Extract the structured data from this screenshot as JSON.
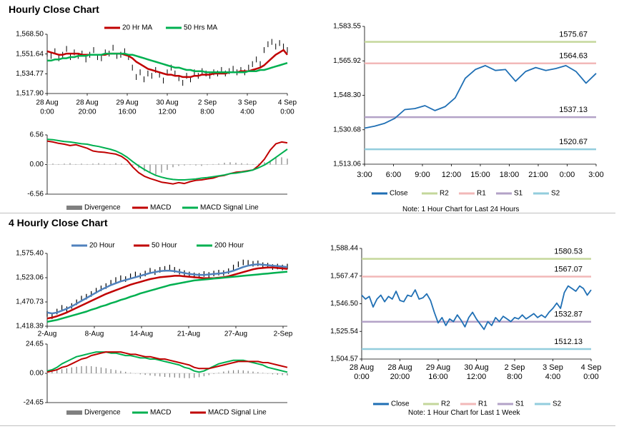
{
  "sections": {
    "hourly_title": "Hourly Close Chart",
    "four_hourly_title": "4 Hourly Close Chart"
  },
  "notes": {
    "hourly_right": "Note: 1 Hour Chart for Last 24 Hours",
    "four_hourly_right": "Note: 1 Hour Chart for Last 1 Week"
  },
  "colors": {
    "price": "#000000",
    "ma_red": "#c00000",
    "ma_green": "#00b050",
    "ma_blue": "#4f81bd",
    "close_line": "#1f6fb4",
    "r2": "#c4d79b",
    "r1": "#f2b8b8",
    "s1": "#b3a2c7",
    "s2": "#93cddd",
    "divergence": "#808080"
  },
  "chart_data": [
    {
      "id": "hourly_price",
      "type": "line",
      "title": "",
      "legend": [
        "20 Hr MA",
        "50 Hrs MA"
      ],
      "y_ticks": [
        "1,568.50",
        "1,551.64",
        "1,534.77",
        "1,517.90"
      ],
      "ylim": [
        1517.9,
        1568.5
      ],
      "x_tick_labels": [
        [
          "28 Aug",
          "0:00"
        ],
        [
          "28 Aug",
          "20:00"
        ],
        [
          "29 Aug",
          "16:00"
        ],
        [
          "30 Aug",
          "12:00"
        ],
        [
          "2 Sep",
          "8:00"
        ],
        [
          "3 Sep",
          "4:00"
        ],
        [
          "4 Sep",
          "0:00"
        ]
      ],
      "series": [
        {
          "name": "Price",
          "values": [
            1552,
            1550,
            1554,
            1548,
            1551,
            1556,
            1549,
            1553,
            1550,
            1552,
            1547,
            1551,
            1555,
            1549,
            1548,
            1553,
            1552,
            1557,
            1550,
            1551,
            1554,
            1549,
            1540,
            1532,
            1536,
            1530,
            1535,
            1533,
            1538,
            1534,
            1529,
            1536,
            1540,
            1535,
            1531,
            1527,
            1533,
            1530,
            1536,
            1533,
            1537,
            1535,
            1533,
            1536,
            1535,
            1538,
            1535,
            1537,
            1539,
            1536,
            1538,
            1536,
            1540,
            1543,
            1547,
            1543,
            1555,
            1560,
            1562,
            1558,
            1561,
            1558,
            1555
          ]
        },
        {
          "name": "20 Hr MA",
          "values": [
            1554,
            1553,
            1552,
            1551,
            1551,
            1552,
            1552,
            1552,
            1552,
            1551,
            1551,
            1551,
            1551,
            1551,
            1551,
            1551,
            1552,
            1552,
            1552,
            1552,
            1551,
            1550,
            1548,
            1545,
            1543,
            1541,
            1539,
            1538,
            1537,
            1536,
            1535,
            1534,
            1534,
            1533,
            1533,
            1532,
            1532,
            1532,
            1533,
            1533,
            1534,
            1534,
            1534,
            1535,
            1535,
            1535,
            1535,
            1536,
            1536,
            1536,
            1537,
            1537,
            1537,
            1538,
            1539,
            1540,
            1542,
            1545,
            1548,
            1551,
            1553,
            1555,
            1551
          ]
        },
        {
          "name": "50 Hrs MA",
          "values": [
            1546,
            1546,
            1547,
            1547,
            1548,
            1548,
            1549,
            1549,
            1550,
            1550,
            1550,
            1551,
            1551,
            1551,
            1551,
            1552,
            1552,
            1552,
            1552,
            1552,
            1552,
            1551,
            1551,
            1550,
            1549,
            1548,
            1547,
            1546,
            1545,
            1544,
            1543,
            1542,
            1541,
            1540,
            1540,
            1539,
            1538,
            1538,
            1537,
            1537,
            1537,
            1536,
            1536,
            1536,
            1536,
            1536,
            1536,
            1536,
            1536,
            1536,
            1536,
            1536,
            1537,
            1537,
            1537,
            1538,
            1538,
            1539,
            1540,
            1541,
            1542,
            1543,
            1544
          ]
        }
      ]
    },
    {
      "id": "hourly_macd",
      "type": "line",
      "legend": [
        "Divergence",
        "MACD",
        "MACD Signal Line"
      ],
      "y_ticks": [
        "6.56",
        "0.00",
        "-6.56"
      ],
      "ylim": [
        -6.56,
        6.56
      ],
      "series": [
        {
          "name": "Divergence",
          "values": [
            0.3,
            0.2,
            0.1,
            0.2,
            0.3,
            0.1,
            0.2,
            0.1,
            0.2,
            0.3,
            0.2,
            0.1,
            0.3,
            0.2,
            0.1,
            -0.2,
            -0.8,
            -1.5,
            -1.9,
            -2.2,
            -1.8,
            -1.2,
            -0.6,
            -0.3,
            -0.2,
            -0.1,
            -0.2,
            -0.3,
            -0.1,
            0.1,
            0.2,
            0.4,
            0.5,
            0.4,
            0.3,
            0.2,
            0.1,
            0.2,
            0.5,
            0.9,
            1.5,
            1.6,
            1.3
          ]
        },
        {
          "name": "MACD",
          "values": [
            5.2,
            5.0,
            4.7,
            4.5,
            4.2,
            4.4,
            4.0,
            3.6,
            3.0,
            2.8,
            2.7,
            2.5,
            2.3,
            1.8,
            0.9,
            -0.6,
            -1.8,
            -2.6,
            -3.1,
            -3.5,
            -3.9,
            -4.1,
            -4.3,
            -4.0,
            -4.2,
            -3.8,
            -3.5,
            -3.4,
            -3.2,
            -3.0,
            -2.6,
            -2.4,
            -2.0,
            -1.7,
            -1.6,
            -1.4,
            -1.2,
            -0.2,
            1.2,
            3.2,
            4.6,
            5.0,
            4.8
          ]
        },
        {
          "name": "MACD Signal Line",
          "values": [
            5.6,
            5.5,
            5.3,
            5.1,
            5.0,
            4.8,
            4.6,
            4.5,
            4.2,
            4.0,
            3.7,
            3.4,
            3.0,
            2.4,
            1.6,
            0.6,
            -0.3,
            -1.1,
            -1.8,
            -2.4,
            -2.8,
            -3.1,
            -3.3,
            -3.4,
            -3.4,
            -3.3,
            -3.2,
            -3.0,
            -2.9,
            -2.7,
            -2.5,
            -2.3,
            -2.0,
            -1.9,
            -1.7,
            -1.5,
            -1.2,
            -0.7,
            -0.1,
            0.7,
            1.6,
            2.5,
            3.4
          ]
        }
      ]
    },
    {
      "id": "hourly_pivot",
      "type": "line",
      "y_ticks": [
        "1,583.55",
        "1,565.92",
        "1,548.30",
        "1,530.68",
        "1,513.06"
      ],
      "ylim": [
        1513.06,
        1583.55
      ],
      "x_tick_labels": [
        "3:00",
        "6:00",
        "9:00",
        "12:00",
        "15:00",
        "18:00",
        "21:00",
        "0:00",
        "3:00"
      ],
      "levels": [
        {
          "name": "R2",
          "value": 1575.67,
          "label": "1575.67"
        },
        {
          "name": "R1",
          "value": 1564.63,
          "label": "1564.63"
        },
        {
          "name": "S1",
          "value": 1537.13,
          "label": "1537.13"
        },
        {
          "name": "S2",
          "value": 1520.67,
          "label": "1520.67"
        }
      ],
      "legend": [
        "Close",
        "R2",
        "R1",
        "S1",
        "S2"
      ],
      "series": [
        {
          "name": "Close",
          "values": [
            1531.5,
            1532.5,
            1534.0,
            1536.5,
            1541.0,
            1541.5,
            1543.0,
            1540.5,
            1542.5,
            1547.0,
            1557.0,
            1561.5,
            1563.5,
            1561.0,
            1561.5,
            1555.5,
            1560.5,
            1562.5,
            1561.0,
            1562.0,
            1563.5,
            1560.5,
            1554.5,
            1559.5
          ]
        }
      ]
    },
    {
      "id": "four_hourly_price",
      "type": "line",
      "legend": [
        "20 Hour",
        "50 Hour",
        "200 Hour"
      ],
      "y_ticks": [
        "1,575.40",
        "1,523.06",
        "1,470.73",
        "1,418.39"
      ],
      "ylim": [
        1418.39,
        1575.4
      ],
      "x_tick_labels": [
        "2-Aug",
        "8-Aug",
        "14-Aug",
        "21-Aug",
        "27-Aug",
        "2-Sep"
      ],
      "series": [
        {
          "name": "Price",
          "values": [
            1445,
            1440,
            1450,
            1458,
            1455,
            1462,
            1470,
            1478,
            1482,
            1488,
            1495,
            1500,
            1505,
            1512,
            1518,
            1522,
            1520,
            1526,
            1530,
            1527,
            1532,
            1538,
            1535,
            1540,
            1542,
            1545,
            1540,
            1536,
            1533,
            1530,
            1528,
            1527,
            1531,
            1529,
            1532,
            1534,
            1533,
            1537,
            1545,
            1552,
            1556,
            1555,
            1553,
            1554,
            1550,
            1549,
            1546,
            1547,
            1545,
            1547
          ]
        },
        {
          "name": "20 Hour",
          "values": [
            1448,
            1446,
            1448,
            1452,
            1456,
            1461,
            1467,
            1473,
            1479,
            1485,
            1491,
            1497,
            1502,
            1507,
            1511,
            1515,
            1518,
            1521,
            1524,
            1527,
            1530,
            1533,
            1535,
            1537,
            1538,
            1538,
            1537,
            1535,
            1533,
            1531,
            1530,
            1529,
            1529,
            1530,
            1531,
            1532,
            1533,
            1535,
            1538,
            1542,
            1546,
            1549,
            1551,
            1552,
            1551,
            1550,
            1549,
            1548,
            1547,
            1546
          ]
        },
        {
          "name": "50 Hour",
          "values": [
            1435,
            1437,
            1440,
            1444,
            1448,
            1453,
            1458,
            1463,
            1468,
            1473,
            1478,
            1483,
            1488,
            1492,
            1496,
            1500,
            1504,
            1508,
            1511,
            1514,
            1517,
            1520,
            1522,
            1524,
            1525,
            1526,
            1527,
            1527,
            1526,
            1525,
            1524,
            1523,
            1522,
            1522,
            1522,
            1523,
            1524,
            1526,
            1529,
            1532,
            1535,
            1538,
            1541,
            1543,
            1544,
            1545,
            1545,
            1544,
            1543,
            1542
          ]
        },
        {
          "name": "200 Hour",
          "values": [
            1428,
            1430,
            1432,
            1435,
            1438,
            1441,
            1444,
            1447,
            1450,
            1454,
            1457,
            1461,
            1464,
            1468,
            1471,
            1475,
            1478,
            1482,
            1485,
            1489,
            1492,
            1495,
            1498,
            1501,
            1504,
            1507,
            1509,
            1511,
            1513,
            1515,
            1517,
            1518,
            1519,
            1520,
            1521,
            1522,
            1523,
            1524,
            1525,
            1526,
            1527,
            1528,
            1529,
            1530,
            1531,
            1532,
            1533,
            1534,
            1535,
            1536
          ]
        }
      ]
    },
    {
      "id": "four_hourly_macd",
      "type": "line",
      "legend": [
        "Divergence",
        "MACD",
        "MACD Signal Line"
      ],
      "y_ticks": [
        "24.65",
        "0.00",
        "-24.65"
      ],
      "ylim": [
        -24.65,
        24.65
      ],
      "series": [
        {
          "name": "Divergence",
          "values": [
            1.5,
            2.0,
            2.8,
            3.5,
            4.2,
            5.0,
            5.5,
            6.0,
            6.2,
            6.0,
            5.5,
            5.0,
            4.3,
            3.5,
            2.8,
            2.0,
            1.3,
            0.5,
            -0.2,
            -0.8,
            -1.3,
            -1.8,
            -2.2,
            -2.6,
            -3.0,
            -3.3,
            -3.5,
            -3.8,
            -4.0,
            -4.1,
            -3.8,
            -3.3,
            -2.5,
            -1.5,
            -0.5,
            0.5,
            1.5,
            2.2,
            2.6,
            2.8,
            2.5,
            2.0,
            1.5,
            1.0,
            0.4,
            -0.3,
            -0.8,
            -1.2,
            -1.5,
            -1.8
          ]
        },
        {
          "name": "MACD",
          "values": [
            2,
            3,
            5,
            8,
            10,
            12,
            14,
            15,
            16,
            17,
            18,
            18,
            18,
            17,
            17,
            16,
            15,
            15,
            14,
            13,
            13,
            12,
            12,
            11,
            10,
            9,
            8,
            7,
            5,
            4,
            2,
            1,
            2,
            4,
            6,
            8,
            9,
            10,
            11,
            11,
            11,
            10,
            9,
            8,
            7,
            5,
            4,
            3,
            2,
            1
          ]
        },
        {
          "name": "MACD Signal Line",
          "values": [
            1,
            2,
            3,
            5,
            6,
            8,
            10,
            12,
            13,
            15,
            16,
            17,
            18,
            18,
            18,
            18,
            17,
            16,
            16,
            15,
            14,
            14,
            13,
            12,
            12,
            11,
            10,
            9,
            8,
            7,
            5,
            4,
            4,
            4,
            5,
            6,
            7,
            8,
            9,
            10,
            10,
            10,
            10,
            10,
            9,
            9,
            8,
            7,
            6,
            5
          ]
        }
      ]
    },
    {
      "id": "four_hourly_pivot",
      "type": "line",
      "y_ticks": [
        "1,588.44",
        "1,567.47",
        "1,546.50",
        "1,525.54",
        "1,504.57"
      ],
      "ylim": [
        1504.57,
        1588.44
      ],
      "x_tick_labels": [
        [
          "28 Aug",
          "0:00"
        ],
        [
          "28 Aug",
          "20:00"
        ],
        [
          "29 Aug",
          "16:00"
        ],
        [
          "30 Aug",
          "12:00"
        ],
        [
          "2 Sep",
          "8:00"
        ],
        [
          "3 Sep",
          "4:00"
        ],
        [
          "4 Sep",
          "0:00"
        ]
      ],
      "levels": [
        {
          "name": "R2",
          "value": 1580.53,
          "label": "1580.53"
        },
        {
          "name": "R1",
          "value": 1567.07,
          "label": "1567.07"
        },
        {
          "name": "S1",
          "value": 1532.87,
          "label": "1532.87"
        },
        {
          "name": "S2",
          "value": 1512.13,
          "label": "1512.13"
        }
      ],
      "legend": [
        "Close",
        "R2",
        "R1",
        "S1",
        "S2"
      ],
      "series": [
        {
          "name": "Close",
          "values": [
            1553,
            1550,
            1552,
            1544,
            1550,
            1553,
            1548,
            1552,
            1550,
            1556,
            1549,
            1548,
            1553,
            1552,
            1557,
            1550,
            1551,
            1554,
            1549,
            1540,
            1532,
            1536,
            1530,
            1535,
            1533,
            1538,
            1534,
            1529,
            1536,
            1540,
            1535,
            1531,
            1527,
            1533,
            1530,
            1536,
            1533,
            1537,
            1535,
            1533,
            1536,
            1535,
            1538,
            1535,
            1537,
            1539,
            1536,
            1538,
            1536,
            1540,
            1543,
            1547,
            1543,
            1555,
            1560,
            1558,
            1556,
            1560,
            1558,
            1553,
            1557
          ]
        }
      ]
    }
  ]
}
